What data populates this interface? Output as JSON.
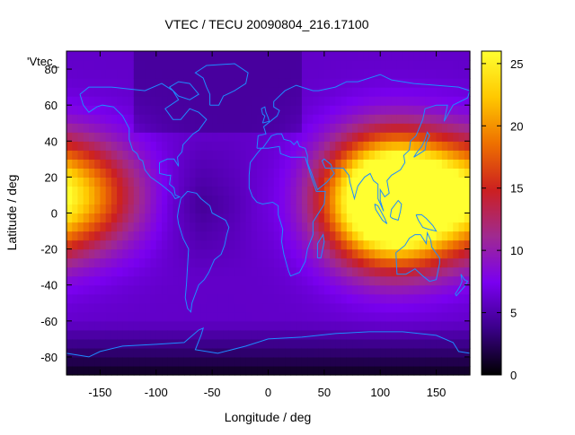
{
  "chart_data": {
    "type": "heatmap",
    "title": "VTEC / TECU 20090804_216.17100",
    "xlabel": "Longitude / deg",
    "ylabel": "Latitude / deg",
    "series_key": "'Vtec_",
    "xlim": [
      -180,
      180
    ],
    "ylim": [
      -90,
      90
    ],
    "x_ticks": [
      -150,
      -100,
      -50,
      0,
      50,
      100,
      150
    ],
    "y_ticks": [
      -80,
      -60,
      -40,
      -20,
      0,
      20,
      40,
      60,
      80
    ],
    "colorbar": {
      "range": [
        0,
        26
      ],
      "ticks": [
        0,
        5,
        10,
        15,
        20,
        25
      ],
      "palette": [
        "#000000",
        "#3a0088",
        "#7a00f0",
        "#a02a90",
        "#cc2020",
        "#ee7000",
        "#ffc800",
        "#ffff30"
      ]
    },
    "coastline_color": "#1e8cff",
    "grid_step_deg": 5,
    "estimated_peaks": [
      {
        "lon": 110,
        "lat": 15,
        "vtec": 25
      },
      {
        "lon": 110,
        "lat": -2,
        "vtec": 22
      },
      {
        "lon": -172,
        "lat": 10,
        "vtec": 20
      }
    ],
    "background_vtec": 6,
    "south_polar_vtec": 2
  }
}
